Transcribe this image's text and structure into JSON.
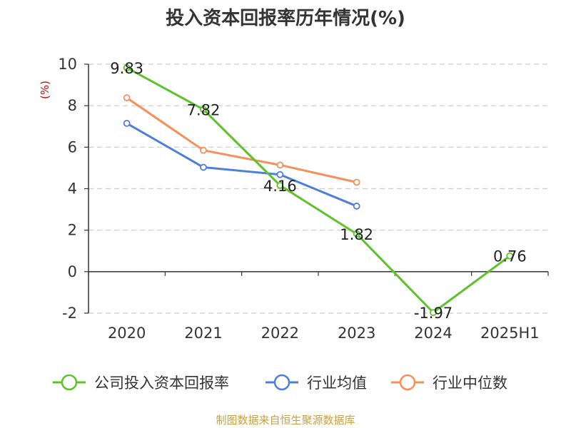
{
  "chart_data": {
    "type": "line",
    "title": "投入资本回报率历年情况(%)",
    "ylabel": "(%)",
    "categories": [
      "2020",
      "2021",
      "2022",
      "2023",
      "2024",
      "2025H1"
    ],
    "y_ticks": [
      "10",
      "8",
      "6",
      "4",
      "2",
      "0",
      "-2"
    ],
    "ylim": [
      -2,
      10
    ],
    "grid": true,
    "legend_placement": "bottom",
    "series": [
      {
        "name": "公司投入资本回报率",
        "color": "#5ec22a",
        "values": [
          9.83,
          7.82,
          4.16,
          1.82,
          -1.97,
          0.76
        ],
        "labels": [
          "9.83",
          "7.82",
          "4.16",
          "1.82",
          "-1.97",
          "0.76"
        ]
      },
      {
        "name": "行业均值",
        "color": "#4f7fd8",
        "values": [
          7.15,
          5.03,
          4.68,
          3.16,
          null,
          null
        ]
      },
      {
        "name": "行业中位数",
        "color": "#f5905a",
        "values": [
          8.38,
          5.85,
          5.14,
          4.31,
          null,
          null
        ]
      }
    ],
    "source": "制图数据来自恒生聚源数据库"
  }
}
